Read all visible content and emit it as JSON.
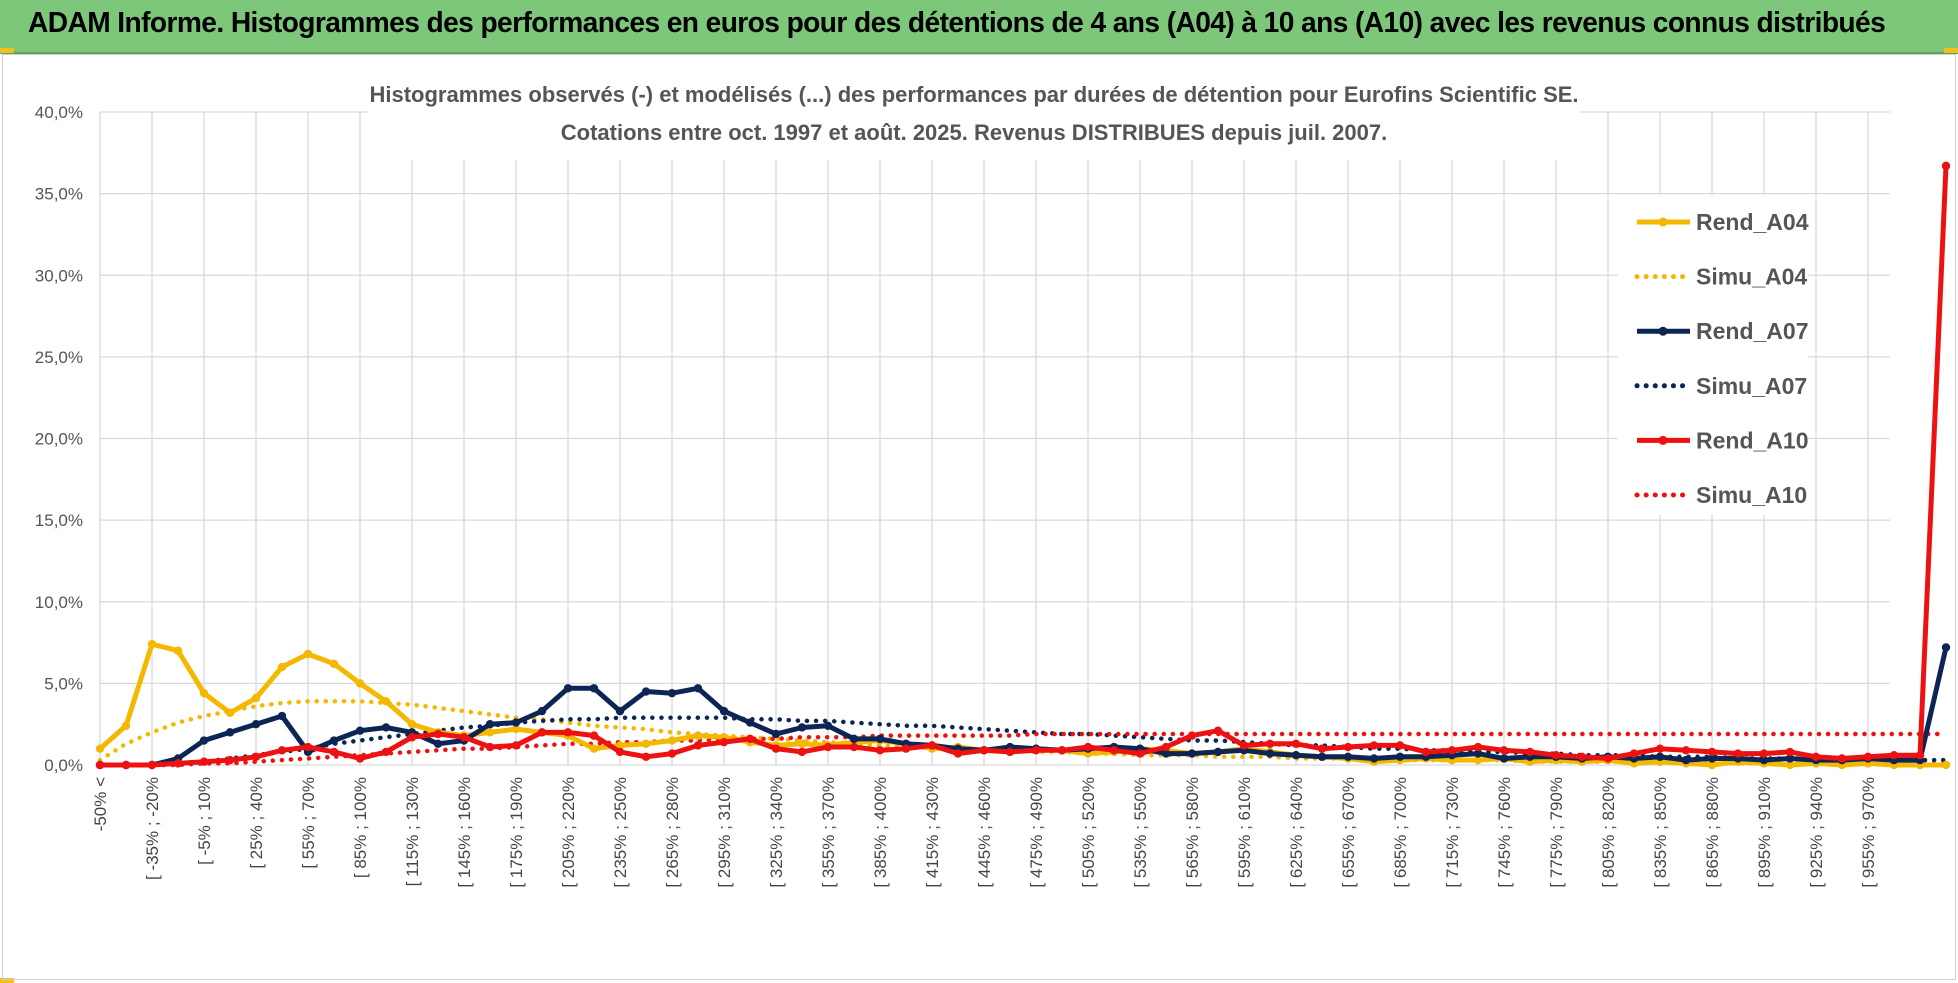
{
  "header": {
    "title": "ADAM Informe. Histogrammes des performances en euros pour des détentions de 4 ans (A04) à 10 ans (A10) avec les revenus connus distribués"
  },
  "chart_data": {
    "type": "line",
    "title": "Histogrammes observés (-) et modélisés (...) des performances par durées de détention pour Eurofins Scientific SE.",
    "subtitle": "Cotations entre oct. 1997 et août. 2025. Revenus DISTRIBUES depuis juil. 2007.",
    "ylim": [
      0,
      40
    ],
    "ytick_labels": [
      "0,0%",
      "5,0%",
      "10,0%",
      "15,0%",
      "20,0%",
      "25,0%",
      "30,0%",
      "35,0%",
      "40,0%"
    ],
    "xtick_labels": [
      "-50% <",
      "[ -35% ; -20%",
      "[ -5% ; 10%",
      "[ 25% ; 40%",
      "[ 55% ; 70%",
      "[ 85% ; 100%",
      "[ 115% ; 130%",
      "[ 145% ; 160%",
      "[ 175% ; 190%",
      "[ 205% ; 220%",
      "[ 235% ; 250%",
      "[ 265% ; 280%",
      "[ 295% ; 310%",
      "[ 325% ; 340%",
      "[ 355% ; 370%",
      "[ 385% ; 400%",
      "[ 415% ; 430%",
      "[ 445% ; 460%",
      "[ 475% ; 490%",
      "[ 505% ; 520%",
      "[ 535% ; 550%",
      "[ 565% ; 580%",
      "[ 595% ; 610%",
      "[ 625% ; 640%",
      "[ 655% ; 670%",
      "[ 685% ; 700%",
      "[ 715% ; 730%",
      "[ 745% ; 760%",
      "[ 775% ; 790%",
      "[ 805% ; 820%",
      "[ 835% ; 850%",
      "[ 865% ; 880%",
      "[ 895% ; 910%",
      "[ 925% ; 940%",
      "[ 955% ; 970%"
    ],
    "grid": true,
    "legend_position": "right",
    "series": [
      {
        "name": "Rend_A04",
        "style": "solid",
        "color": "#f5b800",
        "values": [
          1.0,
          2.4,
          7.4,
          7.0,
          4.4,
          3.2,
          4.1,
          6.0,
          6.8,
          6.2,
          5.0,
          3.9,
          2.5,
          2.0,
          1.8,
          2.0,
          2.2,
          2.0,
          1.8,
          1.0,
          1.2,
          1.3,
          1.5,
          1.8,
          1.7,
          1.4,
          1.2,
          1.3,
          1.2,
          1.4,
          1.5,
          1.3,
          1.0,
          1.1,
          0.9,
          0.8,
          1.0,
          0.9,
          0.7,
          0.8,
          1.0,
          0.9,
          0.7,
          0.8,
          1.0,
          0.8,
          0.6,
          0.5,
          0.4,
          0.2,
          0.3,
          0.4,
          0.3,
          0.3,
          0.4,
          0.2,
          0.3,
          0.2,
          0.3,
          0.1,
          0.2,
          0.1,
          0.0,
          0.2,
          0.1,
          0.0,
          0.1,
          0.0,
          0.1,
          0.0,
          0.0,
          0.0
        ]
      },
      {
        "name": "Simu_A04",
        "style": "dotted",
        "color": "#f5b800",
        "values": [
          0.3,
          1.3,
          2.0,
          2.6,
          3.0,
          3.3,
          3.6,
          3.8,
          3.9,
          3.9,
          3.9,
          3.8,
          3.7,
          3.5,
          3.3,
          3.1,
          2.9,
          2.8,
          2.6,
          2.4,
          2.3,
          2.2,
          2.0,
          1.9,
          1.8,
          1.7,
          1.6,
          1.5,
          1.4,
          1.3,
          1.2,
          1.1,
          1.1,
          1.0,
          0.9,
          0.9,
          0.8,
          0.8,
          0.7,
          0.7,
          0.6,
          0.6,
          0.6,
          0.5,
          0.5,
          0.5,
          0.4,
          0.4,
          0.4,
          0.4,
          0.3,
          0.3,
          0.3,
          0.3,
          0.3,
          0.2,
          0.2,
          0.2,
          0.2,
          0.2,
          0.2,
          0.2,
          0.1,
          0.1,
          0.1,
          0.1,
          0.1,
          0.1,
          0.1,
          0.1,
          0.1,
          0.1
        ]
      },
      {
        "name": "Rend_A07",
        "style": "solid",
        "color": "#0d2555",
        "values": [
          0.0,
          0.0,
          0.0,
          0.4,
          1.5,
          2.0,
          2.5,
          3.0,
          0.8,
          1.5,
          2.1,
          2.3,
          2.0,
          1.3,
          1.5,
          2.5,
          2.6,
          3.3,
          4.7,
          4.7,
          3.3,
          4.5,
          4.4,
          4.7,
          3.3,
          2.6,
          1.9,
          2.3,
          2.4,
          1.6,
          1.6,
          1.3,
          1.2,
          1.0,
          0.9,
          1.1,
          1.0,
          0.9,
          1.0,
          1.1,
          1.0,
          0.7,
          0.7,
          0.8,
          0.9,
          0.7,
          0.6,
          0.5,
          0.5,
          0.4,
          0.5,
          0.5,
          0.6,
          0.7,
          0.4,
          0.5,
          0.5,
          0.4,
          0.5,
          0.4,
          0.5,
          0.3,
          0.4,
          0.4,
          0.3,
          0.4,
          0.3,
          0.3,
          0.4,
          0.3,
          0.3,
          7.2
        ]
      },
      {
        "name": "Simu_A07",
        "style": "dotted",
        "color": "#0d2555",
        "values": [
          0.0,
          0.0,
          0.0,
          0.1,
          0.2,
          0.4,
          0.6,
          0.8,
          1.0,
          1.3,
          1.5,
          1.7,
          1.9,
          2.1,
          2.3,
          2.4,
          2.6,
          2.7,
          2.8,
          2.8,
          2.9,
          2.9,
          2.9,
          2.9,
          2.9,
          2.8,
          2.8,
          2.7,
          2.7,
          2.6,
          2.5,
          2.4,
          2.4,
          2.3,
          2.2,
          2.1,
          2.0,
          1.9,
          1.9,
          1.8,
          1.7,
          1.6,
          1.5,
          1.5,
          1.4,
          1.3,
          1.2,
          1.2,
          1.1,
          1.0,
          1.0,
          0.9,
          0.9,
          0.8,
          0.8,
          0.7,
          0.7,
          0.6,
          0.6,
          0.6,
          0.5,
          0.5,
          0.5,
          0.4,
          0.4,
          0.4,
          0.4,
          0.3,
          0.3,
          0.3,
          0.3,
          0.3
        ]
      },
      {
        "name": "Rend_A10",
        "style": "solid",
        "color": "#ee1111",
        "values": [
          0.0,
          0.0,
          0.0,
          0.1,
          0.2,
          0.3,
          0.5,
          0.9,
          1.1,
          0.8,
          0.4,
          0.8,
          1.7,
          1.9,
          1.7,
          1.1,
          1.2,
          2.0,
          2.0,
          1.8,
          0.8,
          0.5,
          0.7,
          1.2,
          1.4,
          1.6,
          1.0,
          0.8,
          1.1,
          1.1,
          0.9,
          1.0,
          1.2,
          0.7,
          0.9,
          0.8,
          0.9,
          0.9,
          1.1,
          0.9,
          0.7,
          1.1,
          1.8,
          2.1,
          1.2,
          1.3,
          1.3,
          1.0,
          1.1,
          1.2,
          1.2,
          0.8,
          0.9,
          1.1,
          0.9,
          0.8,
          0.6,
          0.5,
          0.4,
          0.7,
          1.0,
          0.9,
          0.8,
          0.7,
          0.7,
          0.8,
          0.5,
          0.4,
          0.5,
          0.6,
          0.6,
          36.7
        ]
      },
      {
        "name": "Simu_A10",
        "style": "dotted",
        "color": "#ee1111",
        "values": [
          0.0,
          0.0,
          0.0,
          0.0,
          0.1,
          0.1,
          0.2,
          0.3,
          0.4,
          0.5,
          0.6,
          0.7,
          0.8,
          0.9,
          1.0,
          1.0,
          1.1,
          1.2,
          1.3,
          1.3,
          1.4,
          1.4,
          1.5,
          1.5,
          1.6,
          1.6,
          1.6,
          1.7,
          1.7,
          1.7,
          1.8,
          1.8,
          1.8,
          1.8,
          1.8,
          1.8,
          1.9,
          1.9,
          1.9,
          1.9,
          1.9,
          1.9,
          1.9,
          1.9,
          1.9,
          1.9,
          1.9,
          1.9,
          1.9,
          1.9,
          1.9,
          1.9,
          1.9,
          1.9,
          1.9,
          1.9,
          1.9,
          1.9,
          1.9,
          1.9,
          1.9,
          1.9,
          1.9,
          1.9,
          1.9,
          1.9,
          1.9,
          1.9,
          1.9,
          1.9,
          1.9,
          1.9
        ]
      }
    ]
  }
}
